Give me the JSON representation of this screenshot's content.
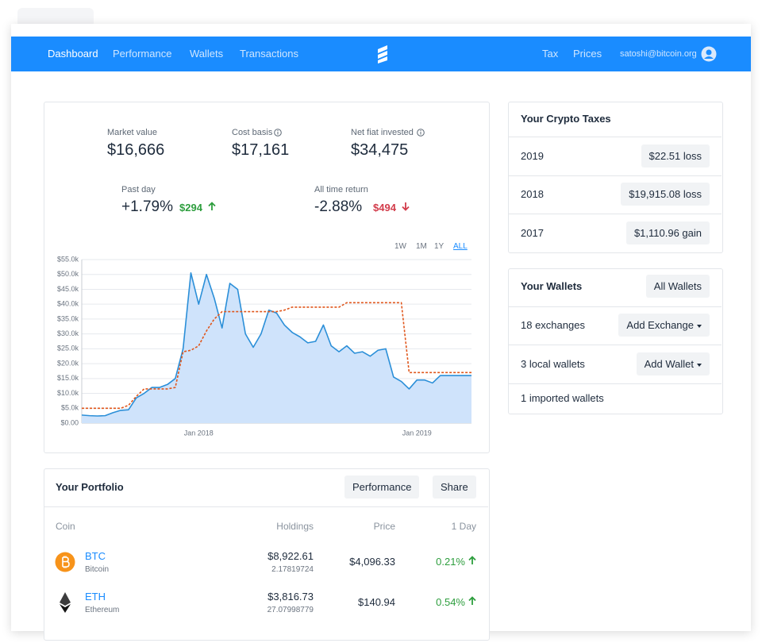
{
  "nav": {
    "left": [
      "Dashboard",
      "Performance",
      "Wallets",
      "Transactions"
    ],
    "right": [
      "Tax",
      "Prices"
    ],
    "user": "satoshi@bitcoin.org"
  },
  "stats": [
    {
      "label": "Market value",
      "value": "$16,666"
    },
    {
      "label": "Cost basis",
      "value": "$17,161"
    },
    {
      "label": "Net fiat invested",
      "value": "$34,475"
    }
  ],
  "returns": [
    {
      "label": "Past day",
      "value": "+1.79%",
      "change": "$294"
    },
    {
      "label": "All time return",
      "value": "-2.88%",
      "change": "$494"
    }
  ],
  "ranges": [
    "1W",
    "1M",
    "1Y",
    "ALL"
  ],
  "chart_data": {
    "type": "line",
    "categories": [
      null,
      null,
      null,
      null,
      null,
      null,
      null,
      null,
      null,
      null,
      null,
      null,
      null,
      null,
      null,
      "Jan 2018",
      null,
      null,
      null,
      null,
      null,
      null,
      null,
      null,
      null,
      null,
      null,
      null,
      null,
      null,
      null,
      null,
      null,
      null,
      null,
      null,
      null,
      null,
      null,
      null,
      null,
      null,
      null,
      "Jan 2019",
      null,
      null,
      null,
      null,
      null,
      null,
      null
    ],
    "series": [
      {
        "color": "#2b8fd8",
        "area": true,
        "fill_color": "#cfe3fb",
        "dashed": false,
        "values": [
          2700,
          2500,
          2400,
          2500,
          3500,
          4300,
          4500,
          8500,
          10000,
          12000,
          12000,
          13000,
          15000,
          25000,
          50500,
          40000,
          50000,
          42000,
          32000,
          47000,
          45000,
          30000,
          25500,
          30000,
          38000,
          37000,
          33000,
          30500,
          29000,
          27000,
          27500,
          33000,
          26000,
          24000,
          26000,
          23500,
          24000,
          22500,
          24500,
          25000,
          15500,
          14000,
          11500,
          14500,
          14500,
          13500,
          16000,
          16000,
          16000,
          16000,
          16000
        ]
      },
      {
        "color": "#e0561b",
        "area": false,
        "dashed": true,
        "values": [
          5000,
          5000,
          5000,
          5000,
          5000,
          5000,
          6000,
          9000,
          11500,
          11500,
          11500,
          11500,
          12000,
          24000,
          24500,
          26000,
          31000,
          35000,
          37500,
          37500,
          37500,
          37500,
          37500,
          37500,
          37500,
          37500,
          38000,
          39000,
          39000,
          39000,
          39000,
          39000,
          39000,
          39000,
          40500,
          40500,
          40500,
          40500,
          40500,
          40500,
          40500,
          40500,
          17000,
          17000,
          17000,
          17000,
          17000,
          17000,
          17000,
          17000,
          17000
        ]
      }
    ],
    "ylim": [
      0,
      55000
    ],
    "yticks": [
      {
        "value": 0,
        "label": "$0.00"
      },
      {
        "value": 5000,
        "label": "$5.0k"
      },
      {
        "value": 10000,
        "label": "$10.0k"
      },
      {
        "value": 15000,
        "label": "$15.0k"
      },
      {
        "value": 20000,
        "label": "$20.0k"
      },
      {
        "value": 25000,
        "label": "$25.0k"
      },
      {
        "value": 30000,
        "label": "$30.0k"
      },
      {
        "value": 35000,
        "label": "$35.0k"
      },
      {
        "value": 40000,
        "label": "$40.0k"
      },
      {
        "value": 45000,
        "label": "$45.0k"
      },
      {
        "value": 50000,
        "label": "$50.0k"
      },
      {
        "value": 55000,
        "label": "$55.0k"
      }
    ],
    "grid": true
  },
  "taxes": {
    "title": "Your Crypto Taxes",
    "rows": [
      [
        "2019",
        "$22.51 loss"
      ],
      [
        "2018",
        "$19,915.08 loss"
      ],
      [
        "2017",
        "$1,110.96 gain"
      ]
    ]
  },
  "wallets": {
    "title": "Your Wallets",
    "button": "All Wallets",
    "rows": [
      {
        "label": "18 exchanges",
        "button": "Add Exchange"
      },
      {
        "label": "3 local wallets",
        "button": "Add Wallet"
      },
      {
        "label": "1 imported wallets"
      }
    ]
  },
  "portfolio": {
    "title": "Your Portfolio",
    "buttons": [
      "Performance",
      "Share"
    ],
    "columns": [
      "Coin",
      "Holdings",
      "Price",
      "1 Day"
    ],
    "rows": [
      {
        "symbol": "BTC",
        "name": "Bitcoin",
        "holdings": "$8,922.61",
        "amount": "2.17819724",
        "price": "$4,096.33",
        "change": "0.21%"
      },
      {
        "symbol": "ETH",
        "name": "Ethereum",
        "holdings": "$3,816.73",
        "amount": "27.07998779",
        "price": "$140.94",
        "change": "0.54%"
      }
    ]
  }
}
